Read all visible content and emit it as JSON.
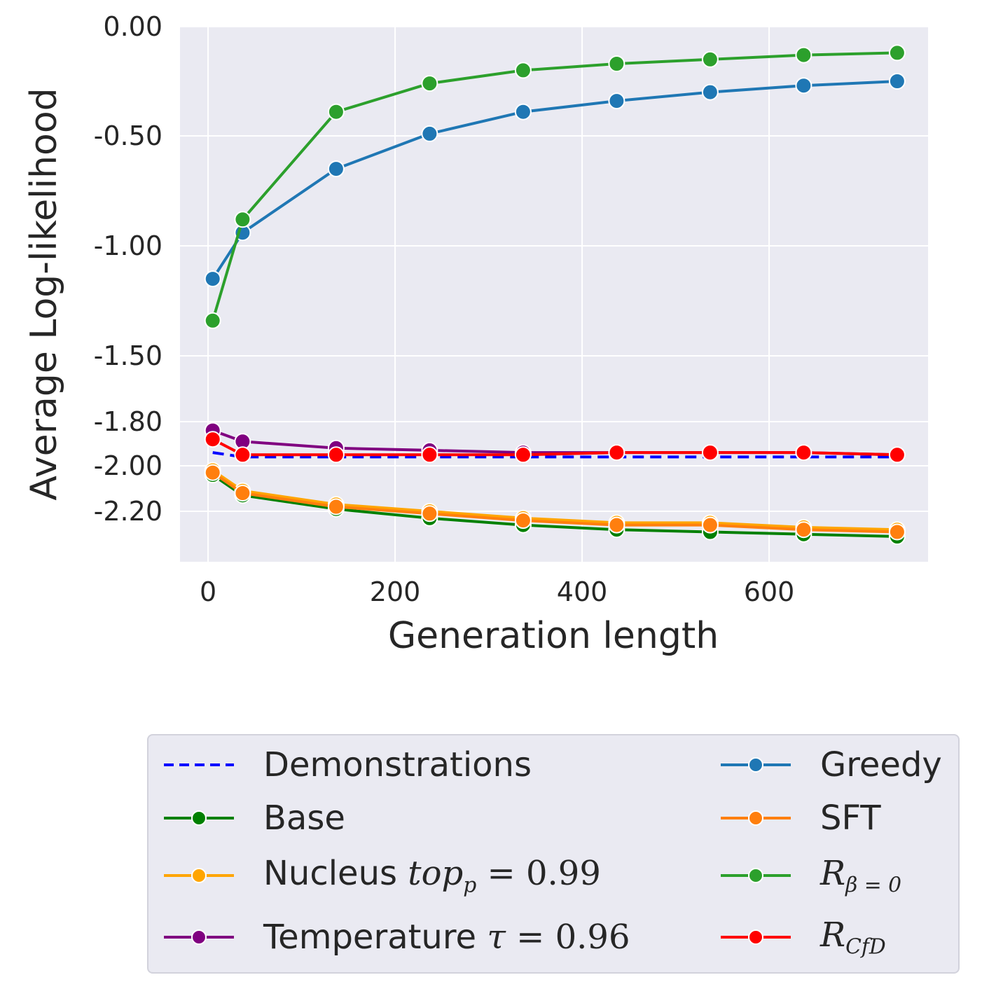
{
  "chart_data": {
    "type": "line",
    "xlabel": "Generation length",
    "ylabel": "Average Log-likelihood",
    "xlim": [
      -30,
      770
    ],
    "x_ticks": [
      0,
      200,
      400,
      600
    ],
    "x_tick_labels": [
      "0",
      "200",
      "400",
      "600"
    ],
    "y_ticks": [
      0.0,
      -0.5,
      -1.0,
      -1.5,
      -1.8,
      -2.0,
      -2.2
    ],
    "y_tick_labels": [
      "0.00",
      "-0.50",
      "-1.00",
      "-1.50",
      "-1.80",
      "-2.00",
      "-2.20"
    ],
    "y_scale": "piecewise",
    "grid": true,
    "legend_position": "bottom",
    "x": [
      5,
      37,
      137,
      237,
      337,
      437,
      537,
      637,
      737
    ],
    "series": [
      {
        "name": "Demonstrations",
        "color": "#0000ff",
        "style": "dashed",
        "marker": false,
        "values": [
          -1.94,
          -1.96,
          -1.96,
          -1.96,
          -1.96,
          -1.96,
          -1.96,
          -1.96,
          -1.96
        ]
      },
      {
        "name": "Base",
        "color": "#008000",
        "style": "solid",
        "marker": true,
        "values": [
          -2.04,
          -2.13,
          -2.19,
          -2.23,
          -2.26,
          -2.28,
          -2.29,
          -2.3,
          -2.31
        ]
      },
      {
        "name": "Nucleus top_p = 0.99",
        "color": "#ffa500",
        "style": "solid",
        "marker": true,
        "values": [
          -2.02,
          -2.11,
          -2.17,
          -2.2,
          -2.23,
          -2.25,
          -2.25,
          -2.27,
          -2.28
        ]
      },
      {
        "name": "Temperature τ = 0.96",
        "color": "#800080",
        "style": "solid",
        "marker": true,
        "values": [
          -1.84,
          -1.89,
          -1.92,
          -1.93,
          -1.94,
          -1.94,
          -1.94,
          -1.94,
          -1.95
        ]
      },
      {
        "name": "Greedy",
        "color": "#1f77b4",
        "style": "solid",
        "marker": true,
        "values": [
          -1.15,
          -0.94,
          -0.65,
          -0.49,
          -0.39,
          -0.34,
          -0.3,
          -0.27,
          -0.25
        ]
      },
      {
        "name": "SFT",
        "color": "#ff7f0e",
        "style": "solid",
        "marker": true,
        "values": [
          -2.03,
          -2.12,
          -2.18,
          -2.21,
          -2.24,
          -2.26,
          -2.26,
          -2.28,
          -2.29
        ]
      },
      {
        "name": "R_β=0",
        "color": "#2ca02c",
        "style": "solid",
        "marker": true,
        "values": [
          -1.34,
          -0.88,
          -0.39,
          -0.26,
          -0.2,
          -0.17,
          -0.15,
          -0.13,
          -0.12
        ]
      },
      {
        "name": "R_CfD",
        "color": "#ff0000",
        "style": "solid",
        "marker": true,
        "values": [
          -1.88,
          -1.95,
          -1.95,
          -1.95,
          -1.95,
          -1.94,
          -1.94,
          -1.94,
          -1.95
        ]
      }
    ]
  },
  "legend": {
    "demonstrations": "Demonstrations",
    "base": "Base",
    "nucleus_prefix": "Nucleus ",
    "nucleus_sym": "top",
    "nucleus_sub": "p",
    "nucleus_eq": " = 0.99",
    "temperature_prefix": "Temperature ",
    "temperature_sym": "τ",
    "temperature_eq": " = 0.96",
    "greedy": "Greedy",
    "sft": "SFT",
    "rbeta_sym": "R",
    "rbeta_sub": "β = 0",
    "rcfd_sym": "R",
    "rcfd_sub": "CfD"
  }
}
